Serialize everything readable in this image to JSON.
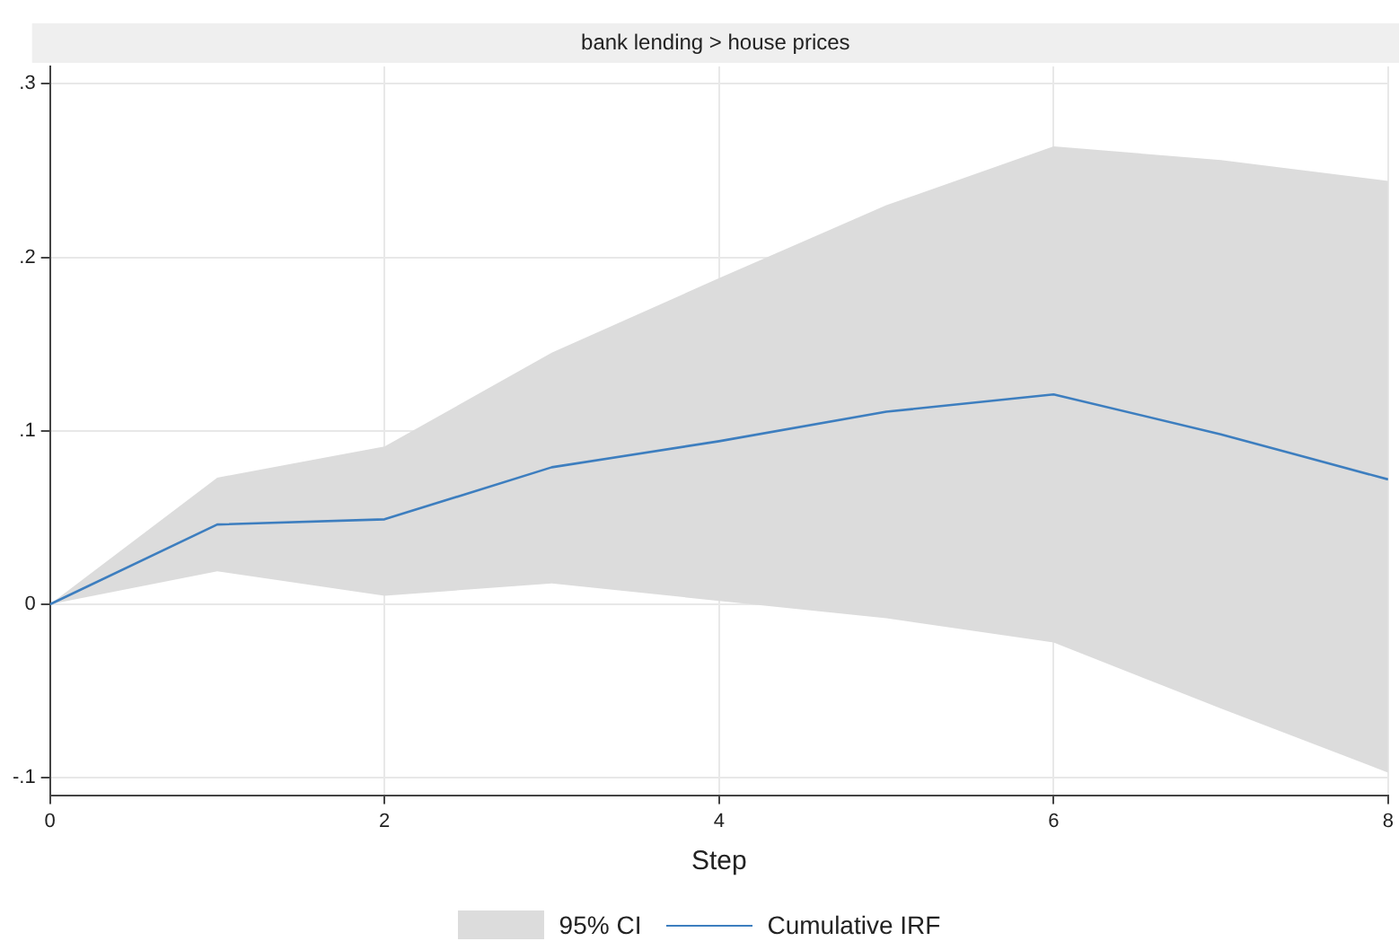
{
  "chart_data": {
    "type": "line",
    "title": "bank lending > house prices",
    "xlabel": "Step",
    "annotations": [
      "95% CI"
    ],
    "x": [
      0,
      1,
      2,
      3,
      4,
      5,
      6,
      7,
      8
    ],
    "series": [
      {
        "name": "Cumulative IRF",
        "color": "#3d7ebf",
        "values": [
          0,
          0.046,
          0.049,
          0.079,
          0.094,
          0.111,
          0.121,
          0.098,
          0.072
        ],
        "lower": [
          0,
          0.019,
          0.005,
          0.012,
          0.002,
          -0.008,
          -0.022,
          -0.06,
          -0.097
        ],
        "upper": [
          0,
          0.073,
          0.091,
          0.145,
          0.188,
          0.23,
          0.264,
          0.256,
          0.244
        ]
      }
    ],
    "xlim": [
      0,
      8
    ],
    "xticks": [
      0,
      2,
      4,
      6,
      8
    ],
    "ylim": [
      -0.11,
      0.31
    ],
    "yticks": [
      {
        "value": -0.1,
        "label": "-.1"
      },
      0,
      {
        "value": 0.1,
        "label": ".1"
      },
      {
        "value": 0.2,
        "label": ".2"
      },
      {
        "value": 0.3,
        "label": ".3"
      }
    ],
    "grid": true,
    "legend": "bottom",
    "marker": "none",
    "line_style": "solid"
  }
}
